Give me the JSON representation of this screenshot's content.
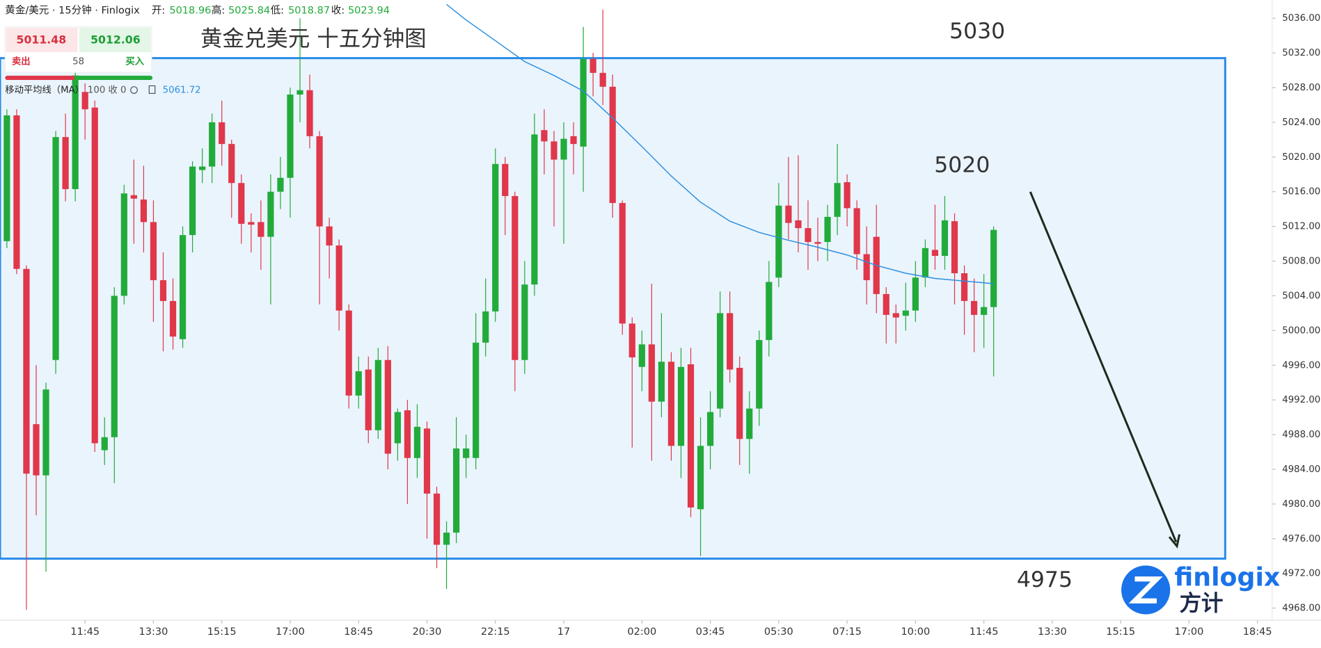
{
  "chart_data": {
    "type": "candlestick",
    "title": "黄金兑美元 十五分钟图",
    "header": {
      "symbol": "黄金/美元 · 15分钟 · Finlogix",
      "open_label": "开:",
      "open": "5018.96",
      "high_label": "高:",
      "high": "5025.84",
      "low_label": "低:",
      "low": "5018.87",
      "close_label": "收:",
      "close": "5023.94"
    },
    "trade": {
      "sell_price": "5011.48",
      "buy_price": "5012.06",
      "sell": "卖出",
      "buy": "买入",
      "spread": "58"
    },
    "ma_legend": {
      "label": "移动平均线（MA）",
      "params": "100 收 0",
      "value": "5061.72"
    },
    "logo": {
      "name": "finlogix",
      "cn": "方计"
    },
    "up_color": "#22ab3a",
    "down_color": "#e0374a",
    "open": [
      5010.3,
      5024.8,
      5007.1,
      4989.2,
      4983.3,
      4996.6,
      5022.3,
      5016.3,
      5027.5,
      5025.7,
      4986.2,
      4987.7,
      5004.0,
      5015.6,
      5015.1,
      5012.5,
      5005.8,
      5003.4,
      4999.0,
      5011.0,
      5018.5,
      5018.9,
      5024.0,
      5021.5,
      5017.0,
      5012.5,
      5012.5,
      5010.8,
      5016.0,
      5017.6,
      5027.2,
      5027.7,
      5022.4,
      5012.0,
      5009.8,
      5002.3,
      4992.5,
      4995.5,
      4988.5,
      4996.6,
      4987.0,
      4990.8,
      4985.3,
      4988.7,
      4981.2,
      4975.3,
      4976.7,
      4985.3,
      4985.3,
      4998.6,
      5002.2,
      5019.2,
      5015.5,
      4996.6,
      5005.3,
      5023.1,
      5021.8,
      5019.7,
      5022.4,
      5021.2,
      5031.3,
      5029.7,
      5028.1,
      5014.7,
      5000.8,
      4995.8,
      4998.4,
      4991.8,
      4996.4,
      4986.7,
      4996.1,
      4979.4,
      4986.7,
      4991.0,
      5002.0,
      4995.7,
      4987.5,
      4991.0,
      4998.9,
      5006.1,
      5014.4,
      5012.7,
      5011.8,
      5010.2,
      5010.2,
      5013.1,
      5017.1,
      5014.1,
      5008.8,
      5010.8,
      5004.2,
      5002.0,
      5001.7,
      5002.3,
      5006.1,
      5009.3,
      5008.6,
      5012.6,
      5006.6,
      5003.4,
      5001.8,
      5002.7
    ],
    "high": [
      5025.5,
      5025.5,
      5007.5,
      4996.0,
      4994.0,
      5023.0,
      5025.0,
      5030.0,
      5028.5,
      5026.5,
      4990.0,
      5005.0,
      5016.8,
      5019.7,
      5019.0,
      5015.0,
      5009.0,
      5006.0,
      5012.0,
      5019.5,
      5021.0,
      5025.0,
      5026.5,
      5022.0,
      5018.0,
      5013.5,
      5015.0,
      5018.0,
      5020.0,
      5028.0,
      5036.0,
      5029.5,
      5023.0,
      5013.0,
      5010.5,
      5003.0,
      4997.0,
      4997.0,
      4998.0,
      4998.2,
      4991.0,
      4992.0,
      4991.5,
      4989.5,
      4982.0,
      4978.0,
      4990.0,
      4988.0,
      5002.0,
      5006.0,
      5021.0,
      5020.0,
      5016.0,
      5008.0,
      5025.0,
      5025.5,
      5023.0,
      5024.0,
      5024.0,
      5035.0,
      5032.0,
      5037.0,
      5029.5,
      5015.0,
      5001.5,
      5000.0,
      5005.4,
      5002.0,
      4997.5,
      4998.0,
      4998.0,
      4990.0,
      4993.0,
      5004.5,
      5004.5,
      4997.0,
      4993.0,
      5000.0,
      5008.0,
      5017.0,
      5020.0,
      5020.2,
      5015.0,
      5013.0,
      5014.5,
      5021.5,
      5018.0,
      5015.0,
      5012.0,
      5014.5,
      5005.0,
      5003.0,
      5005.5,
      5008.0,
      5010.5,
      5014.5,
      5015.5,
      5013.5,
      5007.5,
      5006.0,
      5006.5,
      5012.0
    ],
    "low": [
      5009.5,
      5006.5,
      4967.8,
      4978.7,
      4972.2,
      4995.0,
      5014.9,
      5014.9,
      5022.0,
      4986.0,
      4984.5,
      4982.4,
      5003.0,
      5010.0,
      5009.0,
      5001.0,
      4997.6,
      4997.8,
      4998.0,
      5009.0,
      5017.0,
      5017.0,
      5019.0,
      5013.0,
      5010.0,
      5009.0,
      5007.0,
      5003.0,
      5014.0,
      5013.0,
      5024.0,
      5021.0,
      5003.0,
      5006.0,
      5000.0,
      4991.0,
      4991.0,
      4987.0,
      4987.5,
      4984.0,
      4985.0,
      4980.0,
      4983.0,
      4976.0,
      4972.6,
      4970.2,
      4975.5,
      4983.0,
      4984.0,
      4997.0,
      5001.0,
      5011.0,
      4993.0,
      4995.0,
      5004.0,
      5018.0,
      5012.0,
      5010.0,
      5018.0,
      5016.0,
      5027.0,
      5026.0,
      5013.0,
      4999.5,
      4986.5,
      4993.0,
      4985.0,
      4990.0,
      4985.0,
      4983.0,
      4978.5,
      4974.0,
      4984.0,
      4990.0,
      4994.0,
      4984.5,
      4983.5,
      4989.0,
      4997.0,
      5005.0,
      5010.5,
      5009.0,
      5007.0,
      5008.0,
      5008.0,
      5011.0,
      5012.0,
      5007.0,
      5003.0,
      5002.0,
      4998.5,
      4998.5,
      5000.0,
      5001.0,
      5005.0,
      5007.0,
      5007.0,
      5003.0,
      4999.5,
      4997.5,
      4998.0,
      4994.7
    ],
    "close": [
      5024.8,
      5007.1,
      4983.5,
      4983.3,
      4993.2,
      5022.3,
      5016.3,
      5029.4,
      5025.5,
      4987.0,
      4987.7,
      5004.0,
      5015.8,
      5015.2,
      5012.5,
      5005.8,
      5003.4,
      4999.3,
      5011.0,
      5018.9,
      5018.9,
      5024.0,
      5021.5,
      5017.0,
      5012.3,
      5012.2,
      5010.8,
      5016.0,
      5017.6,
      5027.2,
      5027.7,
      5022.4,
      5012.0,
      5009.8,
      5002.3,
      4992.5,
      4995.3,
      4988.5,
      4996.6,
      4985.8,
      4990.6,
      4985.3,
      4988.9,
      4981.2,
      4975.3,
      4976.7,
      4986.4,
      4986.4,
      4998.6,
      5002.2,
      5019.2,
      5015.5,
      4996.6,
      5005.3,
      5022.6,
      5021.8,
      5019.7,
      5022.1,
      5021.5,
      5031.3,
      5029.7,
      5028.1,
      5014.7,
      5000.8,
      4996.9,
      4998.4,
      4991.8,
      4996.4,
      4986.7,
      4995.8,
      4979.6,
      4986.7,
      4990.6,
      5002.0,
      4995.5,
      4987.5,
      4991.0,
      4998.9,
      5005.6,
      5014.4,
      5012.4,
      5011.8,
      5010.2,
      5010.0,
      5013.1,
      5017.0,
      5014.1,
      5008.8,
      5005.8,
      5004.2,
      5001.8,
      5001.5,
      5002.3,
      5006.1,
      5009.5,
      5008.6,
      5012.7,
      5006.6,
      5003.4,
      5001.8,
      5002.7,
      5011.6
    ],
    "ma": {
      "color": "#2b8fe0",
      "x": [
        45,
        47,
        50,
        53,
        56,
        59,
        62,
        65,
        68,
        71,
        74,
        77,
        80,
        83,
        86,
        89,
        92,
        95,
        98,
        101
      ],
      "values": [
        5037.6,
        5035.8,
        5033.4,
        5031.0,
        5029.4,
        5027.6,
        5024.5,
        5021.2,
        5017.8,
        5014.8,
        5012.6,
        5011.3,
        5010.4,
        5009.6,
        5008.7,
        5007.5,
        5006.6,
        5006.0,
        5005.7,
        5005.4
      ]
    },
    "zone": {
      "low": 4973.7,
      "high": 5031.4,
      "end": 124.7,
      "color": "#2a8ce8",
      "fill": "#eaf4fd"
    },
    "annotations": [
      "5030",
      "5020",
      "4975"
    ],
    "xlim": [
      -0.7,
      129.5
    ],
    "xticks": [
      {
        "value": 8,
        "label": "11:45"
      },
      {
        "value": 15,
        "label": "13:30"
      },
      {
        "value": 22,
        "label": "15:15"
      },
      {
        "value": 29,
        "label": "17:00"
      },
      {
        "value": 36,
        "label": "18:45"
      },
      {
        "value": 43,
        "label": "20:30"
      },
      {
        "value": 50,
        "label": "22:15"
      },
      {
        "value": 57,
        "label": "17"
      },
      {
        "value": 65,
        "label": "02:00"
      },
      {
        "value": 72,
        "label": "03:45"
      },
      {
        "value": 79,
        "label": "05:30"
      },
      {
        "value": 86,
        "label": "07:15"
      },
      {
        "value": 93,
        "label": "10:00"
      },
      {
        "value": 100,
        "label": "11:45"
      },
      {
        "value": 107,
        "label": "13:30"
      },
      {
        "value": 114,
        "label": "15:15"
      },
      {
        "value": 121,
        "label": "17:00"
      },
      {
        "value": 128,
        "label": "18:45"
      }
    ],
    "ylim": [
      4966.6,
      5038.1
    ],
    "yticks": [
      {
        "value": 5036,
        "label": "5036.00"
      },
      {
        "value": 5032,
        "label": "5032.00"
      },
      {
        "value": 5028,
        "label": "5028.00"
      },
      {
        "value": 5024,
        "label": "5024.00"
      },
      {
        "value": 5020,
        "label": "5020.00"
      },
      {
        "value": 5016,
        "label": "5016.00"
      },
      {
        "value": 5012,
        "label": "5012.00"
      },
      {
        "value": 5008,
        "label": "5008.00"
      },
      {
        "value": 5004,
        "label": "5004.00"
      },
      {
        "value": 5000,
        "label": "5000.00"
      },
      {
        "value": 4996,
        "label": "4996.00"
      },
      {
        "value": 4992,
        "label": "4992.00"
      },
      {
        "value": 4988,
        "label": "4988.00"
      },
      {
        "value": 4984,
        "label": "4984.00"
      },
      {
        "value": 4980,
        "label": "4980.00"
      },
      {
        "value": 4976,
        "label": "4976.00"
      },
      {
        "value": 4972,
        "label": "4972.00"
      },
      {
        "value": 4968,
        "label": "4968.00"
      }
    ]
  }
}
